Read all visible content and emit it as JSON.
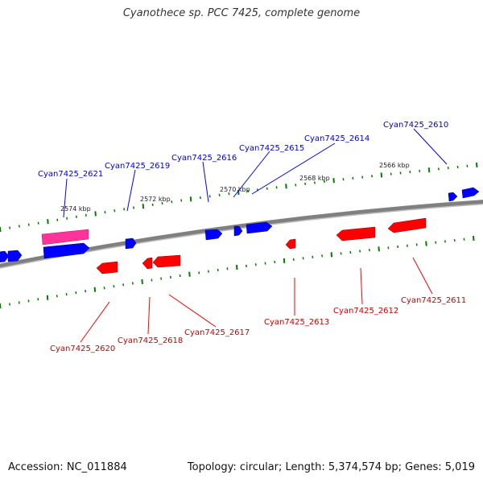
{
  "title": "Cyanothece sp. PCC 7425, complete genome",
  "footer": {
    "accession": "Accession: NC_011884",
    "summary": "Topology: circular; Length: 5,374,574 bp; Genes: 5,019"
  },
  "colors": {
    "backbone": "#808080",
    "forward_gene": "#0000ff",
    "reverse_gene": "#ff0000",
    "highlight_gene": "#ff3399",
    "tick": "#008000",
    "forward_label": "#0000cc",
    "reverse_label": "#cc0000"
  },
  "scale_labels": [
    "2574 kbp",
    "2572 kbp",
    "2570 kbp",
    "2568 kbp",
    "2566 kbp"
  ],
  "forward_labels": [
    "Cyan7425_2621",
    "Cyan7425_2619",
    "Cyan7425_2616",
    "Cyan7425_2615",
    "Cyan7425_2614",
    "Cyan7425_2610"
  ],
  "reverse_labels": [
    "Cyan7425_2620",
    "Cyan7425_2618",
    "Cyan7425_2617",
    "Cyan7425_2613",
    "Cyan7425_2612",
    "Cyan7425_2611"
  ]
}
